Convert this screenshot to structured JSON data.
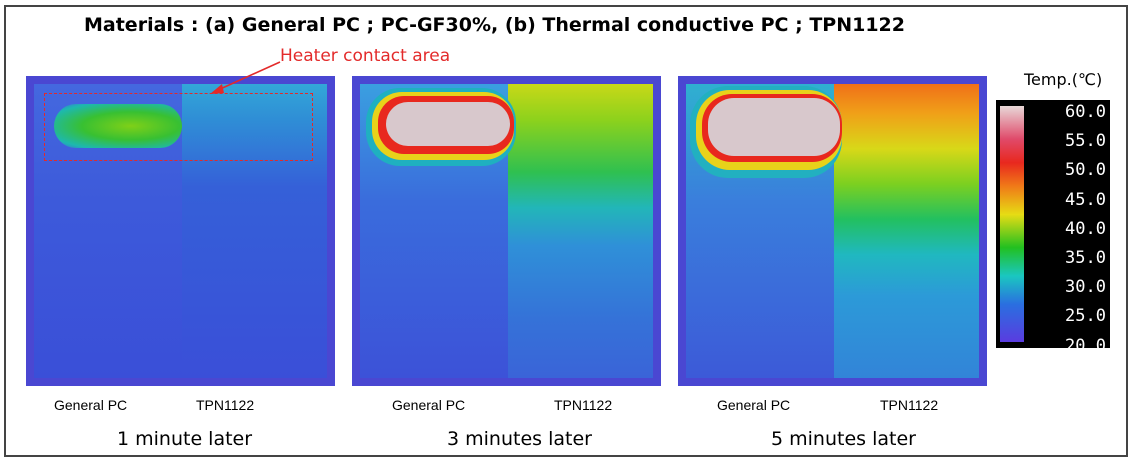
{
  "title": "Materials :  (a) General PC ; PC-GF30%,  (b) Thermal conductive PC ; TPN1122",
  "annotation": {
    "heater_label": "Heater contact area"
  },
  "panels": [
    {
      "left_label": "General PC",
      "right_label": "TPN1122",
      "caption": "1 minute later"
    },
    {
      "left_label": "General PC",
      "right_label": "TPN1122",
      "caption": "3 minutes later"
    },
    {
      "left_label": "General PC",
      "right_label": "TPN1122",
      "caption": "5 minutes later"
    }
  ],
  "scale": {
    "title": "Temp.(℃)",
    "ticks": [
      "60.0",
      "55.0",
      "50.0",
      "45.0",
      "40.0",
      "35.0",
      "30.0",
      "25.0",
      "20.0"
    ]
  },
  "colors": {
    "annotation": "#e32a2a",
    "background_cool": "#3a55dc",
    "hot": "#e8d8d8"
  }
}
